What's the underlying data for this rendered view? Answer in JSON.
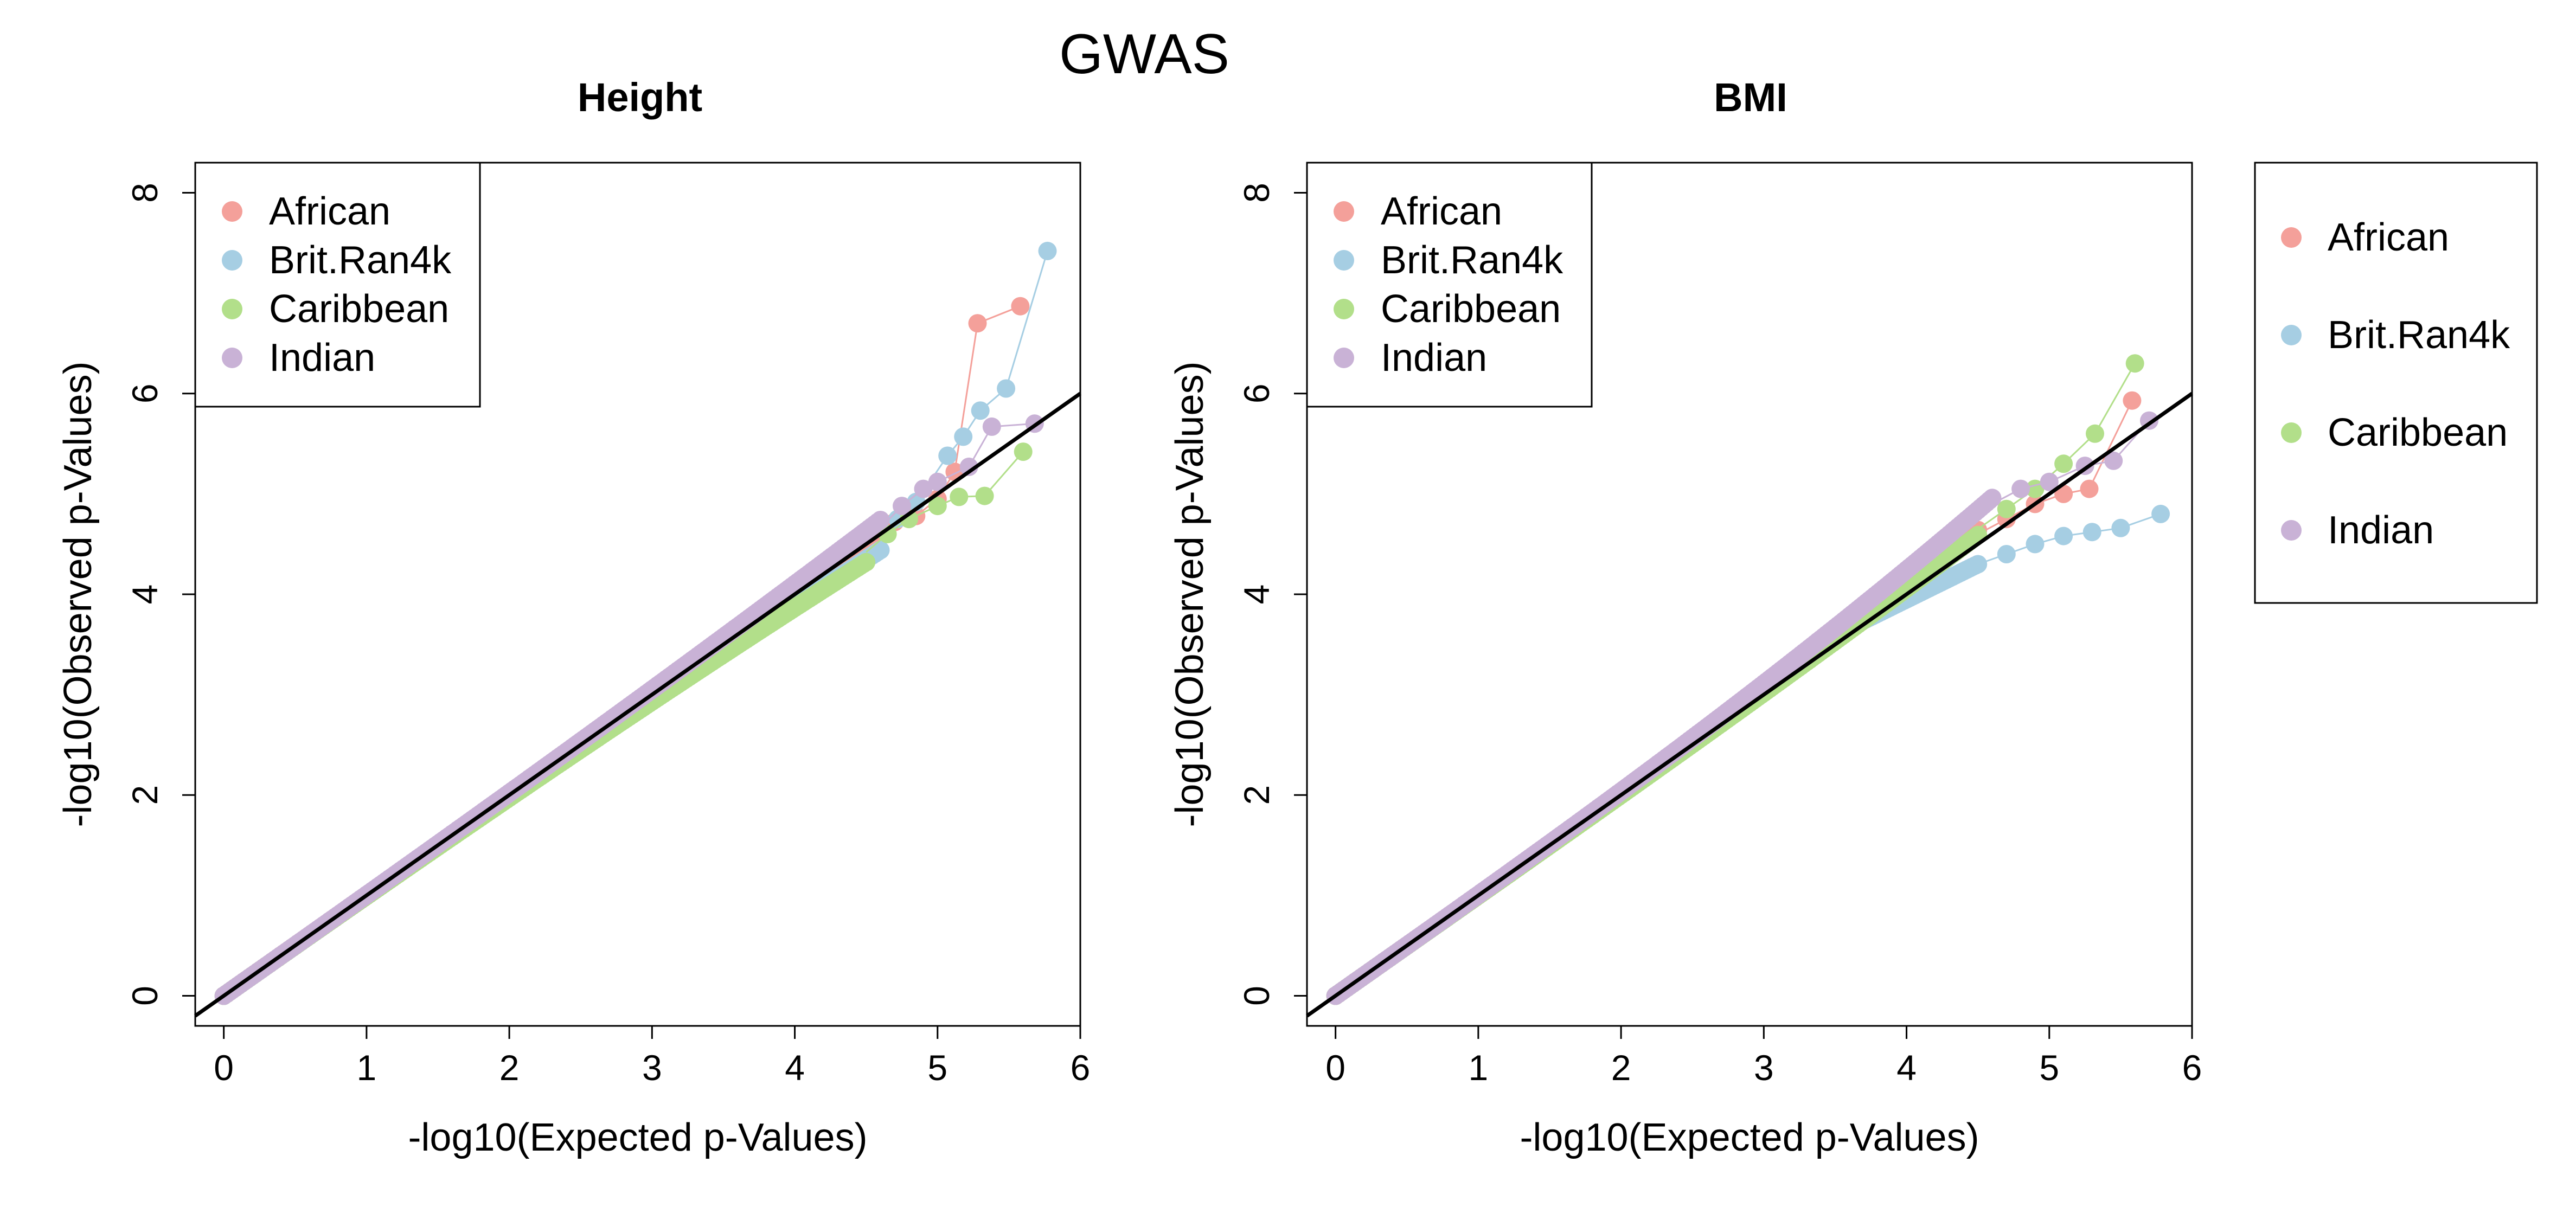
{
  "figure": {
    "title": "GWAS",
    "colors": {
      "African": "#f4a09a",
      "Brit.Ran4k": "#a6cee3",
      "Caribbean": "#b2df8a",
      "Indian": "#c9b2d6",
      "reference_line": "#000000"
    },
    "shared_legend": {
      "placement": "right",
      "entries": [
        "African",
        "Brit.Ran4k",
        "Caribbean",
        "Indian"
      ]
    }
  },
  "chart_data": [
    {
      "type": "scatter",
      "title": "Height",
      "xlabel": "-log10(Expected p-Values)",
      "ylabel": "-log10(Observed p-Values)",
      "xlim": [
        -0.2,
        6
      ],
      "ylim": [
        -0.3,
        8.3
      ],
      "xticks": [
        0,
        1,
        2,
        3,
        4,
        5,
        6
      ],
      "yticks": [
        0,
        2,
        4,
        6,
        8
      ],
      "legend": "top-left",
      "grid": false,
      "reference_line": "y = x",
      "series": [
        {
          "name": "African",
          "color": "#f4a09a",
          "body_end": [
            4.6,
            4.6
          ],
          "bulk_offset": 0.05,
          "tail": [
            [
              4.7,
              4.72
            ],
            [
              4.85,
              4.78
            ],
            [
              5.0,
              4.95
            ],
            [
              5.12,
              5.22
            ],
            [
              5.28,
              6.7
            ],
            [
              5.58,
              6.87
            ]
          ]
        },
        {
          "name": "Brit.Ran4k",
          "color": "#a6cee3",
          "body_end": [
            4.6,
            4.52
          ],
          "bulk_offset": -0.08,
          "tail": [
            [
              4.72,
              4.75
            ],
            [
              4.85,
              4.92
            ],
            [
              5.07,
              5.38
            ],
            [
              5.18,
              5.57
            ],
            [
              5.3,
              5.83
            ],
            [
              5.48,
              6.05
            ],
            [
              5.77,
              7.42
            ]
          ]
        },
        {
          "name": "Caribbean",
          "color": "#b2df8a",
          "body_end": [
            4.5,
            4.42
          ],
          "bulk_offset": -0.1,
          "tail": [
            [
              4.65,
              4.6
            ],
            [
              4.8,
              4.75
            ],
            [
              5.0,
              4.88
            ],
            [
              5.15,
              4.97
            ],
            [
              5.33,
              4.98
            ],
            [
              5.6,
              5.42
            ]
          ]
        },
        {
          "name": "Indian",
          "color": "#c9b2d6",
          "body_end": [
            4.6,
            4.66
          ],
          "bulk_offset": 0.08,
          "tail": [
            [
              4.75,
              4.88
            ],
            [
              4.9,
              5.05
            ],
            [
              5.0,
              5.12
            ],
            [
              5.22,
              5.27
            ],
            [
              5.38,
              5.67
            ],
            [
              5.68,
              5.7
            ]
          ]
        }
      ]
    },
    {
      "type": "scatter",
      "title": "BMI",
      "xlabel": "-log10(Expected p-Values)",
      "ylabel": "-log10(Observed p-Values)",
      "xlim": [
        -0.2,
        6
      ],
      "ylim": [
        -0.3,
        8.3
      ],
      "xticks": [
        0,
        1,
        2,
        3,
        4,
        5,
        6
      ],
      "yticks": [
        0,
        2,
        4,
        6,
        8
      ],
      "legend": "top-left",
      "grid": false,
      "reference_line": "y = x",
      "series": [
        {
          "name": "African",
          "color": "#f4a09a",
          "body_end": [
            4.5,
            4.6
          ],
          "bulk_offset": 0.04,
          "tail": [
            [
              4.7,
              4.75
            ],
            [
              4.9,
              4.9
            ],
            [
              5.1,
              5.0
            ],
            [
              5.28,
              5.05
            ],
            [
              5.58,
              5.93
            ]
          ]
        },
        {
          "name": "Brit.Ran4k",
          "color": "#a6cee3",
          "body_end": [
            4.5,
            4.3
          ],
          "bulk_offset": -0.02,
          "bend": [
            3.5,
            3.6
          ],
          "tail": [
            [
              4.7,
              4.4
            ],
            [
              4.9,
              4.5
            ],
            [
              5.1,
              4.58
            ],
            [
              5.3,
              4.62
            ],
            [
              5.5,
              4.66
            ],
            [
              5.78,
              4.8
            ]
          ]
        },
        {
          "name": "Caribbean",
          "color": "#b2df8a",
          "body_end": [
            4.5,
            4.65
          ],
          "bulk_offset": -0.06,
          "tail": [
            [
              4.7,
              4.85
            ],
            [
              4.9,
              5.05
            ],
            [
              5.1,
              5.3
            ],
            [
              5.32,
              5.6
            ],
            [
              5.6,
              6.3
            ]
          ]
        },
        {
          "name": "Indian",
          "color": "#c9b2d6",
          "body_end": [
            4.6,
            4.9
          ],
          "bulk_offset": 0.06,
          "tail": [
            [
              4.8,
              5.05
            ],
            [
              5.0,
              5.12
            ],
            [
              5.25,
              5.28
            ],
            [
              5.45,
              5.33
            ],
            [
              5.7,
              5.73
            ]
          ]
        }
      ]
    }
  ]
}
